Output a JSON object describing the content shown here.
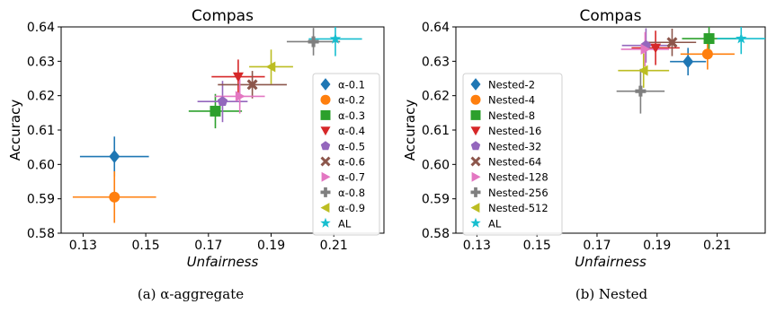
{
  "chart_data": [
    {
      "type": "scatter",
      "title": "Compas",
      "xlabel": "Unfairness",
      "ylabel": "Accuracy",
      "xlim": [
        0.123,
        0.226
      ],
      "ylim": [
        0.58,
        0.64
      ],
      "xticks": [
        "0.13",
        "0.15",
        "0.17",
        "0.19",
        "0.21"
      ],
      "yticks": [
        "0.58",
        "0.59",
        "0.60",
        "0.61",
        "0.62",
        "0.63",
        "0.64"
      ],
      "grid": false,
      "legend_position": "right",
      "caption": "(a) α-aggregate",
      "series": [
        {
          "name": "α-0.1",
          "color": "#1f77b4",
          "marker": "diamond",
          "x": 0.14,
          "y": 0.6023,
          "xerr": 0.011,
          "yerr": 0.0058
        },
        {
          "name": "α-0.2",
          "color": "#ff7f0e",
          "marker": "circle",
          "x": 0.14,
          "y": 0.5905,
          "xerr": 0.0133,
          "yerr": 0.0075
        },
        {
          "name": "α-0.3",
          "color": "#2ca02c",
          "marker": "square",
          "x": 0.1722,
          "y": 0.6155,
          "xerr": 0.0085,
          "yerr": 0.005
        },
        {
          "name": "α-0.4",
          "color": "#d62728",
          "marker": "triangle-down",
          "x": 0.1795,
          "y": 0.6255,
          "xerr": 0.0085,
          "yerr": 0.005
        },
        {
          "name": "α-0.5",
          "color": "#9467bd",
          "marker": "pentagon",
          "x": 0.1745,
          "y": 0.6183,
          "xerr": 0.008,
          "yerr": 0.006
        },
        {
          "name": "α-0.6",
          "color": "#8c564b",
          "marker": "x",
          "x": 0.184,
          "y": 0.6232,
          "xerr": 0.011,
          "yerr": 0.004
        },
        {
          "name": "α-0.7",
          "color": "#e377c2",
          "marker": "triangle-right",
          "x": 0.18,
          "y": 0.6198,
          "xerr": 0.008,
          "yerr": 0.005
        },
        {
          "name": "α-0.8",
          "color": "#7f7f7f",
          "marker": "plus",
          "x": 0.2035,
          "y": 0.6357,
          "xerr": 0.0085,
          "yerr": 0.004
        },
        {
          "name": "α-0.9",
          "color": "#bcbd22",
          "marker": "triangle-left",
          "x": 0.19,
          "y": 0.6284,
          "xerr": 0.007,
          "yerr": 0.005
        },
        {
          "name": "AL",
          "color": "#17becf",
          "marker": "star",
          "x": 0.2105,
          "y": 0.6365,
          "xerr": 0.0085,
          "yerr": 0.005
        }
      ]
    },
    {
      "type": "scatter",
      "title": "Compas",
      "xlabel": "Unfairness",
      "ylabel": "Accuracy",
      "xlim": [
        0.123,
        0.226
      ],
      "ylim": [
        0.58,
        0.64
      ],
      "xticks": [
        "0.13",
        "0.15",
        "0.17",
        "0.19",
        "0.21"
      ],
      "yticks": [
        "0.58",
        "0.59",
        "0.60",
        "0.61",
        "0.62",
        "0.63",
        "0.64"
      ],
      "grid": false,
      "legend_position": "left",
      "caption": "(b) Nested",
      "series": [
        {
          "name": "Nested-2",
          "color": "#1f77b4",
          "marker": "diamond",
          "x": 0.2003,
          "y": 0.6299,
          "xerr": 0.006,
          "yerr": 0.004
        },
        {
          "name": "Nested-4",
          "color": "#ff7f0e",
          "marker": "circle",
          "x": 0.2068,
          "y": 0.6321,
          "xerr": 0.009,
          "yerr": 0.0045
        },
        {
          "name": "Nested-8",
          "color": "#2ca02c",
          "marker": "square",
          "x": 0.2073,
          "y": 0.6366,
          "xerr": 0.009,
          "yerr": 0.0045
        },
        {
          "name": "Nested-16",
          "color": "#d62728",
          "marker": "triangle-down",
          "x": 0.1895,
          "y": 0.6339,
          "xerr": 0.008,
          "yerr": 0.005
        },
        {
          "name": "Nested-32",
          "color": "#9467bd",
          "marker": "pentagon",
          "x": 0.1863,
          "y": 0.6346,
          "xerr": 0.008,
          "yerr": 0.005
        },
        {
          "name": "Nested-64",
          "color": "#8c564b",
          "marker": "x",
          "x": 0.195,
          "y": 0.6355,
          "xerr": 0.008,
          "yerr": 0.004
        },
        {
          "name": "Nested-128",
          "color": "#e377c2",
          "marker": "triangle-right",
          "x": 0.186,
          "y": 0.6335,
          "xerr": 0.008,
          "yerr": 0.005
        },
        {
          "name": "Nested-256",
          "color": "#7f7f7f",
          "marker": "plus",
          "x": 0.1845,
          "y": 0.6213,
          "xerr": 0.008,
          "yerr": 0.0065
        },
        {
          "name": "Nested-512",
          "color": "#bcbd22",
          "marker": "triangle-left",
          "x": 0.1855,
          "y": 0.6273,
          "xerr": 0.0085,
          "yerr": 0.005
        },
        {
          "name": "AL",
          "color": "#17becf",
          "marker": "star",
          "x": 0.218,
          "y": 0.6366,
          "xerr": 0.008,
          "yerr": 0.0045
        }
      ]
    }
  ]
}
